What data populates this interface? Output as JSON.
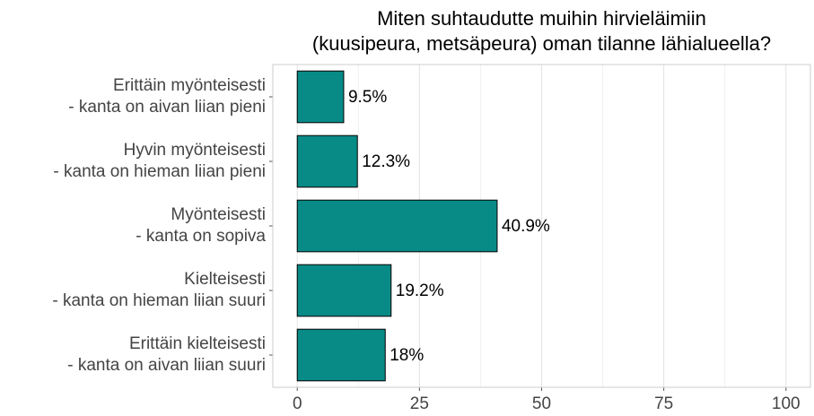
{
  "chart_data": {
    "type": "barh",
    "title": "Miten suhtaudutte muihin hirvieläimiin\n(kuusipeura, metsäpeura) oman tilanne lähialueella?",
    "categories": [
      "Erittäin myönteisesti\n- kanta on aivan liian pieni",
      "Hyvin myönteisesti\n- kanta on hieman liian pieni",
      "Myönteisesti\n- kanta on sopiva",
      "Kielteisesti\n- kanta on hieman liian suuri",
      "Erittäin kielteisesti\n- kanta on aivan liian suuri"
    ],
    "values": [
      9.5,
      12.3,
      40.9,
      19.2,
      18
    ],
    "value_labels": [
      "9.5%",
      "12.3%",
      "40.9%",
      "19.2%",
      "18%"
    ],
    "color": "#088a87",
    "xlim": [
      -5,
      105
    ],
    "xticks": [
      0,
      25,
      50,
      75,
      100
    ],
    "xminorticks": [
      12.5,
      37.5,
      62.5,
      87.5
    ],
    "grid": true
  }
}
